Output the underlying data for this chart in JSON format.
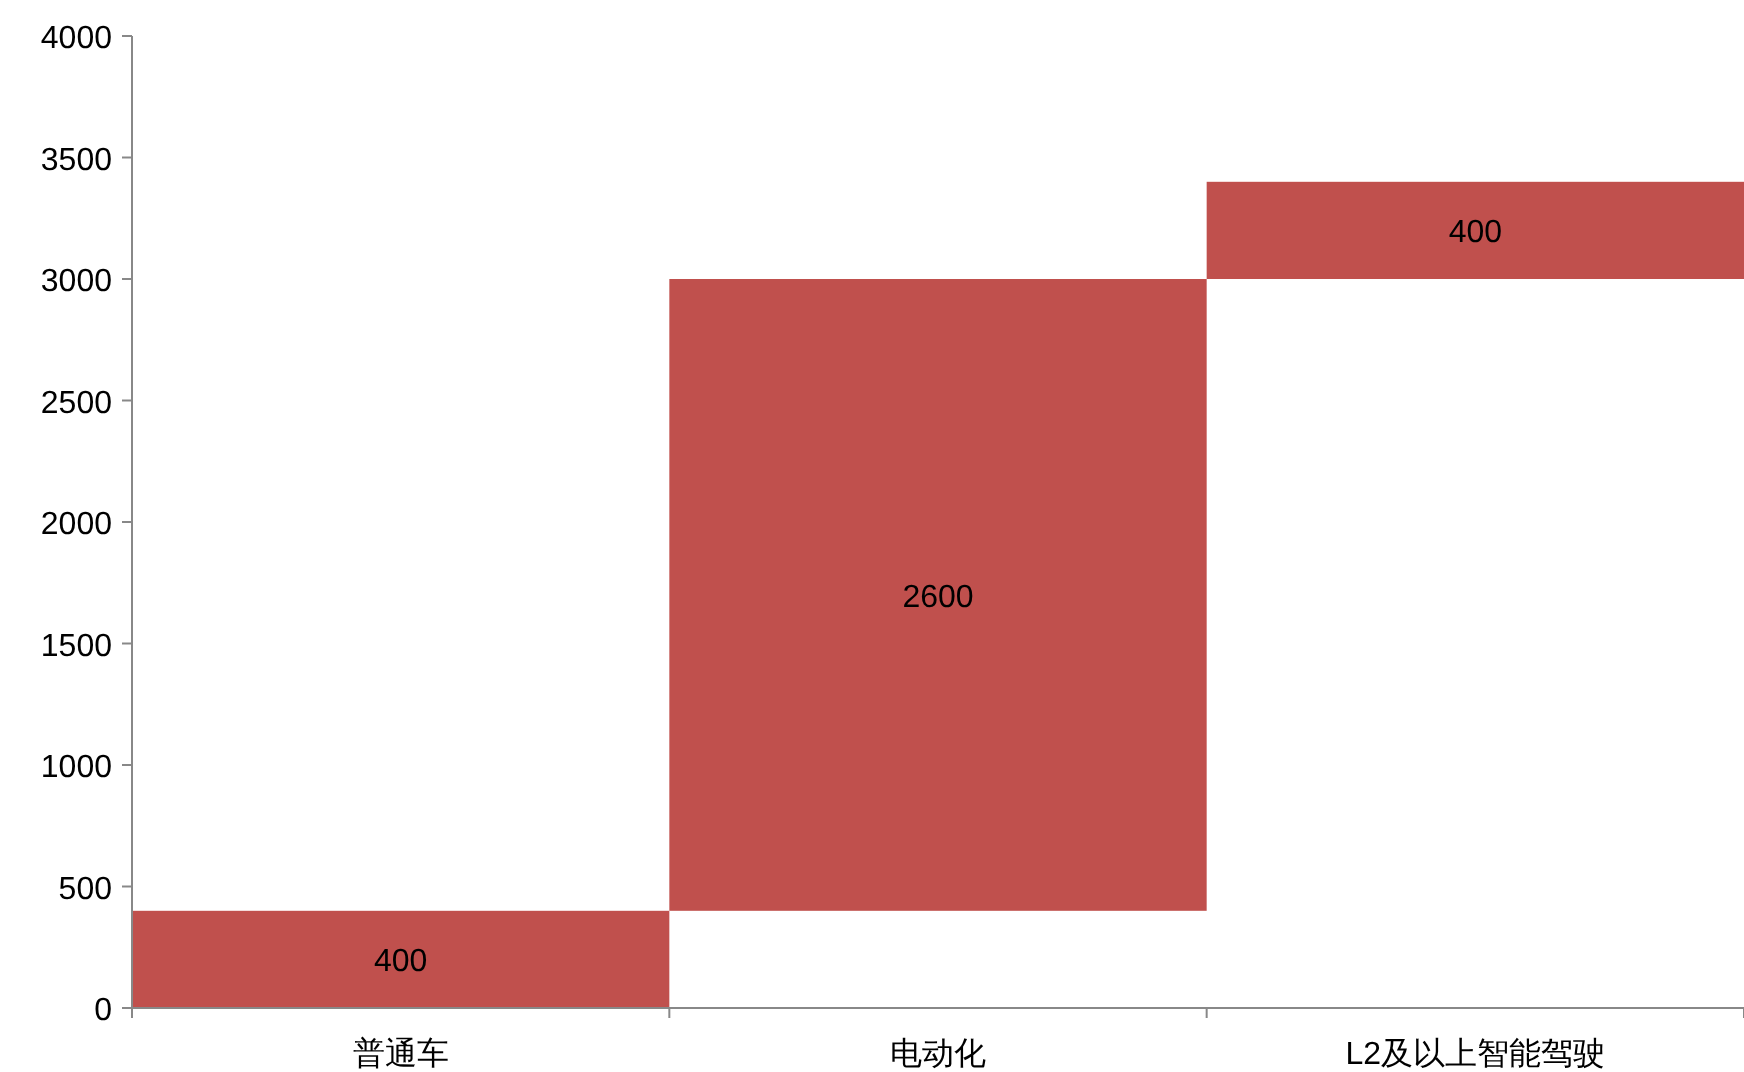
{
  "chart_data": {
    "type": "bar",
    "categories": [
      "普通车",
      "电动化",
      "L2及以上智能驾驶"
    ],
    "values": [
      400,
      2600,
      400
    ],
    "base": [
      0,
      400,
      3000
    ],
    "color": "#c0504d",
    "ylim": [
      0,
      4000
    ],
    "yticks": [
      0,
      500,
      1000,
      1500,
      2000,
      2500,
      3000,
      3500,
      4000
    ],
    "data_labels": true,
    "grid": false
  }
}
